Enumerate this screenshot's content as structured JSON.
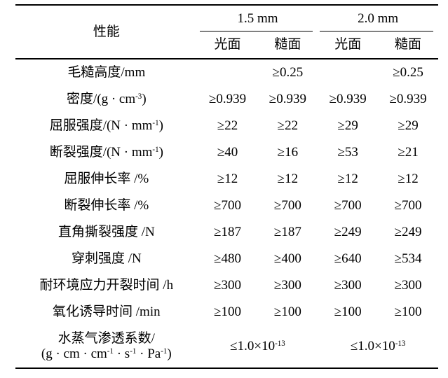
{
  "colors": {
    "background": "#ffffff",
    "text": "#000000",
    "rule": "#000000"
  },
  "table": {
    "header": {
      "property_label": "性能",
      "groups": [
        {
          "label": "1.5 mm",
          "subcols": [
            "光面",
            "糙面"
          ]
        },
        {
          "label": "2.0 mm",
          "subcols": [
            "光面",
            "糙面"
          ]
        }
      ]
    },
    "rows": [
      {
        "label": [
          {
            "t": "毛糙高度/mm"
          }
        ],
        "cells": [
          {
            "span": 1,
            "parts": []
          },
          {
            "span": 1,
            "parts": [
              {
                "t": "≥0.25"
              }
            ]
          },
          {
            "span": 1,
            "parts": []
          },
          {
            "span": 1,
            "parts": [
              {
                "t": "≥0.25"
              }
            ]
          }
        ]
      },
      {
        "label": [
          {
            "t": "密度/(g · cm"
          },
          {
            "sup": "-3"
          },
          {
            "t": ")"
          }
        ],
        "cells": [
          {
            "span": 1,
            "parts": [
              {
                "t": "≥0.939"
              }
            ]
          },
          {
            "span": 1,
            "parts": [
              {
                "t": "≥0.939"
              }
            ]
          },
          {
            "span": 1,
            "parts": [
              {
                "t": "≥0.939"
              }
            ]
          },
          {
            "span": 1,
            "parts": [
              {
                "t": "≥0.939"
              }
            ]
          }
        ]
      },
      {
        "label": [
          {
            "t": "屈服强度/(N · mm"
          },
          {
            "sup": "-1"
          },
          {
            "t": ")"
          }
        ],
        "cells": [
          {
            "span": 1,
            "parts": [
              {
                "t": "≥22"
              }
            ]
          },
          {
            "span": 1,
            "parts": [
              {
                "t": "≥22"
              }
            ]
          },
          {
            "span": 1,
            "parts": [
              {
                "t": "≥29"
              }
            ]
          },
          {
            "span": 1,
            "parts": [
              {
                "t": "≥29"
              }
            ]
          }
        ]
      },
      {
        "label": [
          {
            "t": "断裂强度/(N · mm"
          },
          {
            "sup": "-1"
          },
          {
            "t": ")"
          }
        ],
        "cells": [
          {
            "span": 1,
            "parts": [
              {
                "t": "≥40"
              }
            ]
          },
          {
            "span": 1,
            "parts": [
              {
                "t": "≥16"
              }
            ]
          },
          {
            "span": 1,
            "parts": [
              {
                "t": "≥53"
              }
            ]
          },
          {
            "span": 1,
            "parts": [
              {
                "t": "≥21"
              }
            ]
          }
        ]
      },
      {
        "label": [
          {
            "t": "屈服伸长率 /%"
          }
        ],
        "cells": [
          {
            "span": 1,
            "parts": [
              {
                "t": "≥12"
              }
            ]
          },
          {
            "span": 1,
            "parts": [
              {
                "t": "≥12"
              }
            ]
          },
          {
            "span": 1,
            "parts": [
              {
                "t": "≥12"
              }
            ]
          },
          {
            "span": 1,
            "parts": [
              {
                "t": "≥12"
              }
            ]
          }
        ]
      },
      {
        "label": [
          {
            "t": "断裂伸长率 /%"
          }
        ],
        "cells": [
          {
            "span": 1,
            "parts": [
              {
                "t": "≥700"
              }
            ]
          },
          {
            "span": 1,
            "parts": [
              {
                "t": "≥700"
              }
            ]
          },
          {
            "span": 1,
            "parts": [
              {
                "t": "≥700"
              }
            ]
          },
          {
            "span": 1,
            "parts": [
              {
                "t": "≥700"
              }
            ]
          }
        ]
      },
      {
        "label": [
          {
            "t": "直角撕裂强度 /N"
          }
        ],
        "cells": [
          {
            "span": 1,
            "parts": [
              {
                "t": "≥187"
              }
            ]
          },
          {
            "span": 1,
            "parts": [
              {
                "t": "≥187"
              }
            ]
          },
          {
            "span": 1,
            "parts": [
              {
                "t": "≥249"
              }
            ]
          },
          {
            "span": 1,
            "parts": [
              {
                "t": "≥249"
              }
            ]
          }
        ]
      },
      {
        "label": [
          {
            "t": "穿刺强度 /N"
          }
        ],
        "cells": [
          {
            "span": 1,
            "parts": [
              {
                "t": "≥480"
              }
            ]
          },
          {
            "span": 1,
            "parts": [
              {
                "t": "≥400"
              }
            ]
          },
          {
            "span": 1,
            "parts": [
              {
                "t": "≥640"
              }
            ]
          },
          {
            "span": 1,
            "parts": [
              {
                "t": "≥534"
              }
            ]
          }
        ]
      },
      {
        "label": [
          {
            "t": "耐环境应力开裂时间 /h"
          }
        ],
        "cells": [
          {
            "span": 1,
            "parts": [
              {
                "t": "≥300"
              }
            ]
          },
          {
            "span": 1,
            "parts": [
              {
                "t": "≥300"
              }
            ]
          },
          {
            "span": 1,
            "parts": [
              {
                "t": "≥300"
              }
            ]
          },
          {
            "span": 1,
            "parts": [
              {
                "t": "≥300"
              }
            ]
          }
        ]
      },
      {
        "label": [
          {
            "t": "氧化诱导时间 /min"
          }
        ],
        "cells": [
          {
            "span": 1,
            "parts": [
              {
                "t": "≥100"
              }
            ]
          },
          {
            "span": 1,
            "parts": [
              {
                "t": "≥100"
              }
            ]
          },
          {
            "span": 1,
            "parts": [
              {
                "t": "≥100"
              }
            ]
          },
          {
            "span": 1,
            "parts": [
              {
                "t": "≥100"
              }
            ]
          }
        ]
      },
      {
        "label": [
          {
            "t": "水蒸气渗透系数/"
          },
          {
            "br": true
          },
          {
            "t": "(g · cm · cm"
          },
          {
            "sup": "-1"
          },
          {
            "t": " · s"
          },
          {
            "sup": "-1"
          },
          {
            "t": " · Pa"
          },
          {
            "sup": "-1"
          },
          {
            "t": ")"
          }
        ],
        "cells": [
          {
            "span": 2,
            "parts": [
              {
                "t": "≤1.0×10"
              },
              {
                "sup": "-13"
              }
            ]
          },
          {
            "span": 2,
            "parts": [
              {
                "t": "≤1.0×10"
              },
              {
                "sup": "-13"
              }
            ]
          }
        ]
      }
    ]
  }
}
